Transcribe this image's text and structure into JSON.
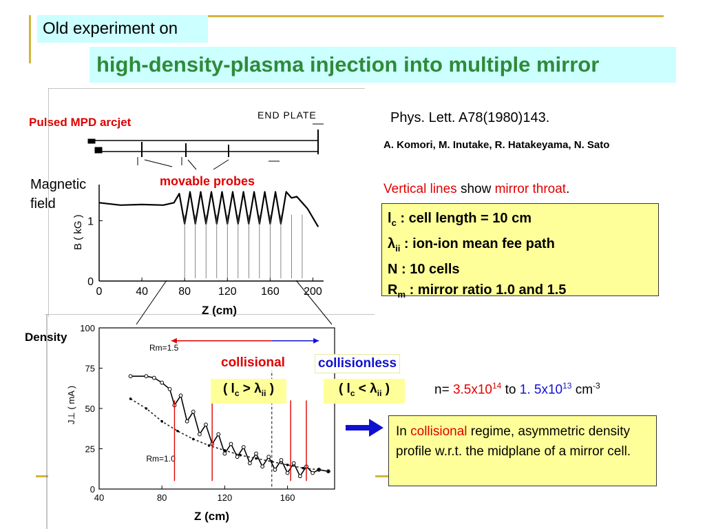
{
  "header": {
    "subtitle": "Old experiment on",
    "title": "high-density-plasma injection into multiple mirror"
  },
  "reference": {
    "citation": "Phys. Lett. A78(1980)143.",
    "authors": "A. Komori, M. Inutake, R. Hatakeyama, N. Sato"
  },
  "vertical_lines_note": {
    "part1": "Vertical lines",
    "part2": " show ",
    "part3": "mirror throat",
    "part4": "."
  },
  "definitions": [
    {
      "sym": "l",
      "sub": "c",
      "text": " : cell length = 10 cm"
    },
    {
      "sym": "λ",
      "sub": "ii",
      "text": " : ion-ion mean fee path"
    },
    {
      "sym": "N",
      "sub": "",
      "text": " : 10 cells"
    },
    {
      "sym": "R",
      "sub": "m",
      "text": " : mirror ratio 1.0 and 1.5"
    }
  ],
  "apparatus": {
    "arcjet_label": "Pulsed MPD arcjet",
    "end_plate_label": "END PLATE",
    "probes_label": "movable probes",
    "magnetic_label_1": "Magnetic",
    "magnetic_label_2": "field"
  },
  "regimes": {
    "collisional": "collisional",
    "collisionless": "collisionless",
    "collisional_cond": {
      "pre": "( l",
      "sub1": "c",
      "op": " > λ",
      "sub2": "ii",
      "post": " )"
    },
    "collisionless_cond": {
      "pre": "( l",
      "sub1": "c",
      "op": " < λ",
      "sub2": "ii",
      "post": " )"
    }
  },
  "density_range": {
    "prefix": "n= ",
    "v1": "3.5x10",
    "e1": "14",
    "mid": " to ",
    "v2": "1. 5x10",
    "e2": "13",
    "unit": " cm",
    "unit_exp": "-3"
  },
  "note": {
    "part1": "In ",
    "part2": "collisional",
    "part3": " regime, asymmetric density profile w.r.t. the midplane of a mirror cell."
  },
  "chart_data": [
    {
      "type": "line",
      "name": "magnetic_field",
      "xlabel": "Z (cm)",
      "ylabel": "B ( kG )",
      "x_ticks": [
        0,
        40,
        80,
        120,
        160,
        200
      ],
      "y_ticks": [
        0,
        1
      ],
      "xlim": [
        0,
        210
      ],
      "ylim": [
        0,
        1.6
      ],
      "series": [
        {
          "x": [
            0,
            20,
            40,
            60,
            70,
            75,
            80,
            85,
            90,
            95,
            100,
            105,
            110,
            115,
            120,
            125,
            130,
            135,
            140,
            145,
            150,
            155,
            160,
            165,
            170,
            175,
            180,
            185,
            195,
            205
          ],
          "y": [
            1.3,
            1.26,
            1.27,
            1.26,
            1.3,
            1.45,
            0.95,
            1.48,
            0.95,
            1.48,
            0.95,
            1.48,
            0.95,
            1.48,
            0.95,
            1.48,
            0.95,
            1.48,
            0.95,
            1.48,
            0.95,
            1.48,
            0.95,
            1.48,
            0.95,
            1.48,
            1.38,
            1.4,
            1.2,
            0.9
          ]
        }
      ]
    },
    {
      "type": "line",
      "name": "density",
      "title": "Density",
      "xlabel": "Z (cm)",
      "ylabel": "J⊥ ( mA )",
      "x_ticks": [
        40,
        80,
        120,
        160
      ],
      "y_ticks": [
        0,
        25,
        50,
        75,
        100
      ],
      "xlim": [
        40,
        190
      ],
      "ylim": [
        0,
        100
      ],
      "series": [
        {
          "name": "Rm=1.5",
          "x": [
            60,
            70,
            75,
            80,
            85,
            88,
            92,
            96,
            100,
            104,
            108,
            112,
            116,
            120,
            124,
            128,
            132,
            136,
            140,
            144,
            148,
            152,
            156,
            160,
            164,
            168,
            172,
            176,
            180,
            186
          ],
          "y": [
            70,
            70,
            69,
            66,
            62,
            52,
            58,
            42,
            48,
            34,
            40,
            28,
            34,
            22,
            28,
            20,
            26,
            16,
            22,
            14,
            20,
            12,
            18,
            10,
            16,
            8,
            14,
            10,
            12,
            11
          ]
        },
        {
          "name": "Rm=1.0",
          "x": [
            60,
            70,
            80,
            90,
            100,
            110,
            120,
            130,
            140,
            150,
            160,
            170,
            180,
            186
          ],
          "y": [
            56,
            50,
            42,
            36,
            31,
            27,
            24,
            21,
            19,
            17,
            15,
            13,
            12,
            11
          ]
        }
      ]
    }
  ]
}
